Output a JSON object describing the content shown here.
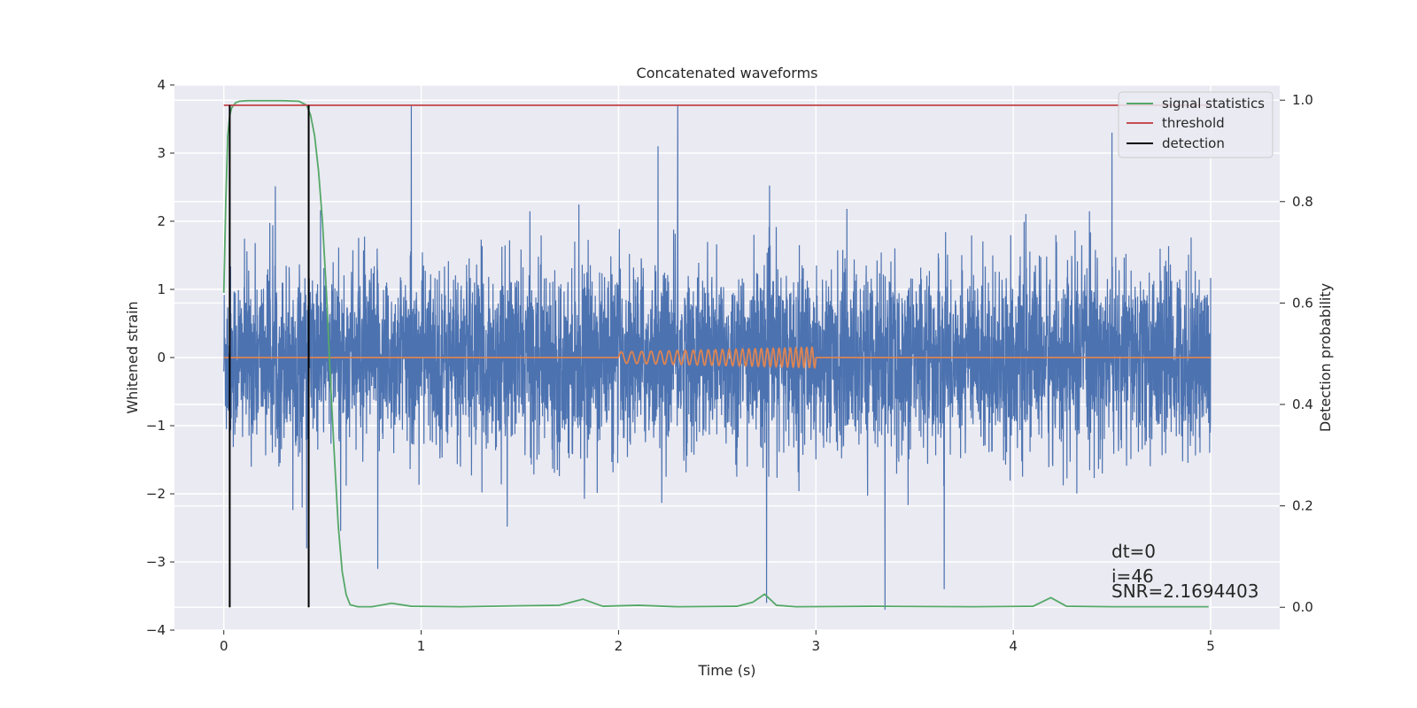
{
  "chart_data": {
    "type": "line",
    "title": "Concatenated waveforms",
    "xlabel": "Time (s)",
    "ylabel_left": "Whitened strain",
    "ylabel_right": "Detection probability",
    "xlim": [
      -0.25,
      5.35
    ],
    "ylim_left": [
      -4.0,
      4.0
    ],
    "ylim_right": [
      -0.045,
      1.03
    ],
    "x_ticks": [
      0,
      1,
      2,
      3,
      4,
      5
    ],
    "y_ticks_left": [
      -4,
      -3,
      -2,
      -1,
      0,
      1,
      2,
      3,
      4
    ],
    "y_ticks_right": [
      0.0,
      0.2,
      0.4,
      0.6,
      0.8,
      1.0
    ],
    "x_tick_labels": [
      "0",
      "1",
      "2",
      "3",
      "4",
      "5"
    ],
    "y_tick_labels_left": [
      "−4",
      "−3",
      "−2",
      "−1",
      "0",
      "1",
      "2",
      "3",
      "4"
    ],
    "y_tick_labels_right": [
      "0.0",
      "0.2",
      "0.4",
      "0.6",
      "0.8",
      "1.0"
    ],
    "grid": true,
    "legend_position": "top-right",
    "legend": [
      {
        "label": "signal statistics",
        "color": "#55a868"
      },
      {
        "label": "threshold",
        "color": "#c44e52"
      },
      {
        "label": "detection",
        "color": "#000000"
      }
    ],
    "series": [
      {
        "kind": "noise",
        "axis": "left",
        "color": "#4c72b0",
        "x_range": [
          0,
          5
        ],
        "amplitude_typical": 1.2,
        "spikes": [
          [
            0.95,
            3.7
          ],
          [
            2.3,
            3.7
          ],
          [
            2.75,
            -3.6
          ],
          [
            3.35,
            -3.7
          ],
          [
            3.65,
            -3.4
          ],
          [
            0.78,
            -3.1
          ],
          [
            0.42,
            -2.8
          ],
          [
            2.2,
            3.1
          ],
          [
            4.5,
            3.3
          ]
        ]
      },
      {
        "kind": "chirp",
        "axis": "left",
        "color": "#dd8452",
        "x_range": [
          0,
          5
        ],
        "chirp_range": [
          2.0,
          3.0
        ],
        "chirp_amplitude": 0.15
      },
      {
        "name": "signal statistics",
        "axis": "right",
        "color": "#55a868",
        "x": [
          0.0,
          0.01,
          0.02,
          0.03,
          0.04,
          0.06,
          0.08,
          0.12,
          0.2,
          0.3,
          0.38,
          0.42,
          0.44,
          0.46,
          0.48,
          0.5,
          0.52,
          0.54,
          0.56,
          0.58,
          0.6,
          0.62,
          0.64,
          0.68,
          0.75,
          0.85,
          0.95,
          1.2,
          1.5,
          1.7,
          1.82,
          1.92,
          2.1,
          2.3,
          2.6,
          2.68,
          2.74,
          2.8,
          2.9,
          3.3,
          3.8,
          4.1,
          4.19,
          4.27,
          4.5,
          4.99
        ],
        "y": [
          0.62,
          0.8,
          0.93,
          0.97,
          0.985,
          0.995,
          0.998,
          0.999,
          0.999,
          0.999,
          0.998,
          0.99,
          0.97,
          0.93,
          0.86,
          0.76,
          0.62,
          0.45,
          0.3,
          0.16,
          0.07,
          0.025,
          0.005,
          0.001,
          0.001,
          0.008,
          0.002,
          0.001,
          0.003,
          0.004,
          0.016,
          0.002,
          0.004,
          0.001,
          0.002,
          0.01,
          0.026,
          0.004,
          0.001,
          0.002,
          0.001,
          0.002,
          0.019,
          0.002,
          0.001,
          0.001
        ]
      },
      {
        "name": "threshold",
        "axis": "right",
        "color": "#c44e52",
        "x": [
          0,
          4.99
        ],
        "y": [
          0.99,
          0.99
        ]
      },
      {
        "name": "detection",
        "axis": "right",
        "color": "#000000",
        "vlines": [
          0.03,
          0.43
        ],
        "y_range": [
          0.0,
          0.99
        ]
      }
    ],
    "annotations": [
      "dt=0",
      "i=46",
      "SNR=2.1694403"
    ]
  }
}
